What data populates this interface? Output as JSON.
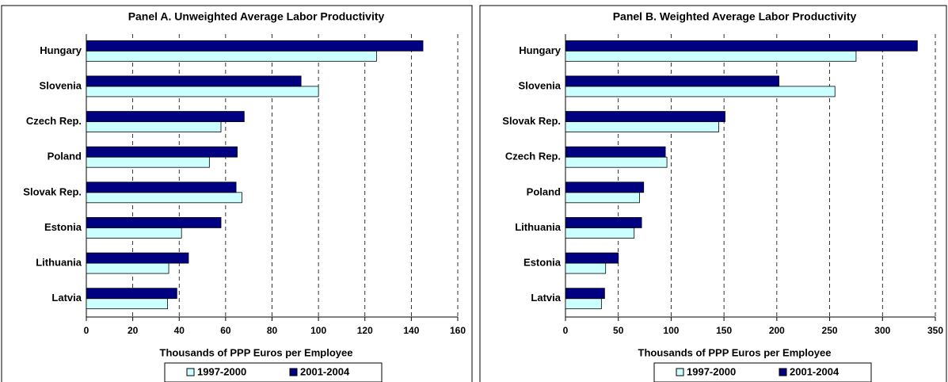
{
  "chart_data": [
    {
      "type": "bar",
      "orientation": "horizontal",
      "title": "Panel A. Unweighted Average Labor Productivity",
      "xlabel": "Thousands of PPP Euros per Employee",
      "categories": [
        "Hungary",
        "Slovenia",
        "Czech Rep.",
        "Poland",
        "Slovak Rep.",
        "Estonia",
        "Lithuania",
        "Latvia"
      ],
      "series": [
        {
          "name": "1997-2000",
          "color": "#ccffff",
          "values": [
            125,
            100,
            58,
            53,
            67,
            41,
            35.5,
            35
          ]
        },
        {
          "name": "2001-2004",
          "color": "#000080",
          "values": [
            145,
            92.5,
            68,
            65,
            64.5,
            58,
            44,
            39
          ]
        }
      ],
      "xlim": [
        0,
        160
      ],
      "xticks": [
        0,
        20,
        40,
        60,
        80,
        100,
        120,
        140,
        160
      ],
      "grid": true
    },
    {
      "type": "bar",
      "orientation": "horizontal",
      "title": "Panel B. Weighted Average Labor Productivity",
      "xlabel": "Thousands of PPP Euros per Employee",
      "categories": [
        "Hungary",
        "Slovenia",
        "Slovak Rep.",
        "Czech Rep.",
        "Poland",
        "Lithuania",
        "Estonia",
        "Latvia"
      ],
      "series": [
        {
          "name": "1997-2000",
          "color": "#ccffff",
          "values": [
            275,
            255,
            145,
            96,
            70,
            65,
            38,
            34
          ]
        },
        {
          "name": "2001-2004",
          "color": "#000080",
          "values": [
            333,
            202,
            151,
            94.5,
            74,
            72,
            50,
            37
          ]
        }
      ],
      "xlim": [
        0,
        350
      ],
      "xticks": [
        0,
        50,
        100,
        150,
        200,
        250,
        300,
        350
      ],
      "grid": true
    }
  ]
}
